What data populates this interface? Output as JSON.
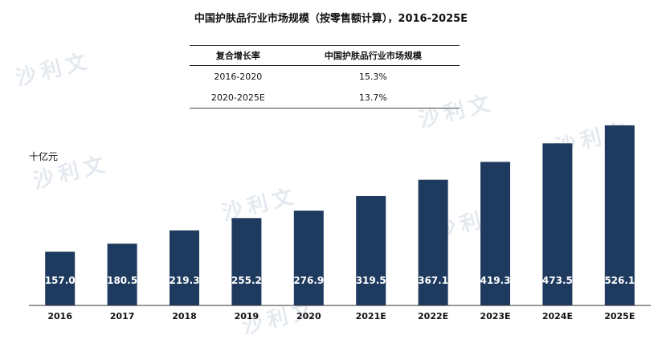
{
  "title": "中国护肤品行业市场规模（按零售额计算），2016-2025E",
  "cagr_table": {
    "headers": [
      "复合增长率",
      "中国护肤品行业市场规模"
    ],
    "rows": [
      {
        "period": "2016-2020",
        "value": "15.3%"
      },
      {
        "period": "2020-2025E",
        "value": "13.7%"
      }
    ]
  },
  "watermark": "沙利文",
  "colors": {
    "bar": "#1f3a5f",
    "axis": "#333333",
    "label": "#ffffff"
  },
  "chart_data": {
    "type": "bar",
    "title": "中国护肤品行业市场规模（按零售额计算），2016-2025E",
    "ylabel": "十亿元",
    "xlabel": "",
    "categories": [
      "2016",
      "2017",
      "2018",
      "2019",
      "2020",
      "2021E",
      "2022E",
      "2023E",
      "2024E",
      "2025E"
    ],
    "values": [
      157.0,
      180.5,
      219.3,
      255.2,
      276.9,
      319.5,
      367.1,
      419.3,
      473.5,
      526.1
    ],
    "value_labels": [
      "157.0",
      "180.5",
      "219.3",
      "255.2",
      "276.9",
      "319.5",
      "367.1",
      "419.3",
      "473.5",
      "526.1"
    ],
    "ylim": [
      0,
      540
    ],
    "grid": false,
    "legend": "none"
  }
}
